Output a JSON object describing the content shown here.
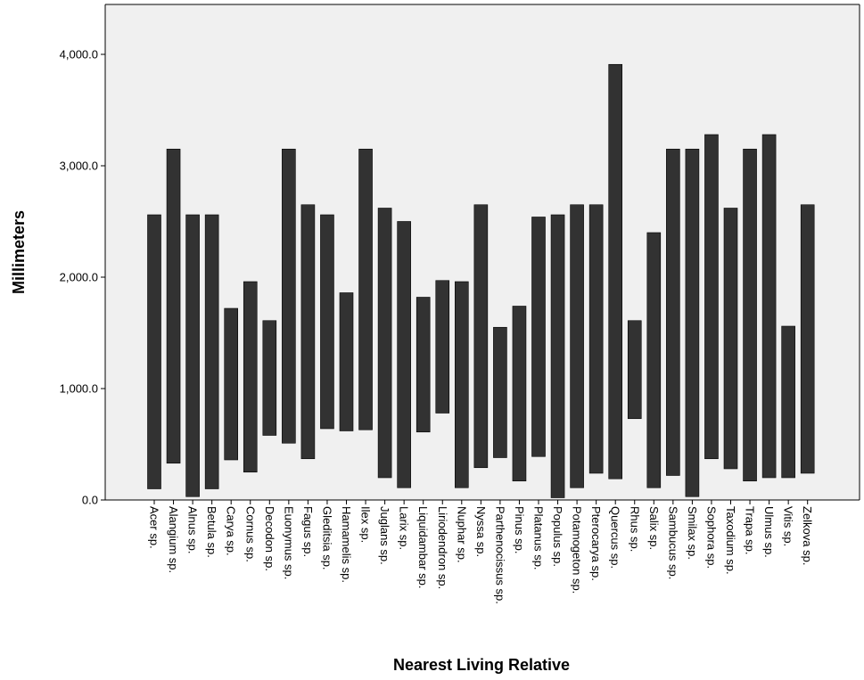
{
  "chart_data": {
    "type": "bar",
    "subtype": "floating-range",
    "xlabel": "Nearest Living Relative",
    "ylabel": "Millimeters",
    "ylim": [
      0,
      4400
    ],
    "yticks": [
      0,
      1000,
      2000,
      3000,
      4000
    ],
    "ytick_labels": [
      "0.0",
      "1,000.0",
      "2,000.0",
      "3,000.0",
      "4,000.0"
    ],
    "grid": false,
    "legend": "none",
    "colors": {
      "plot_background": "#f0f0f0",
      "bar_fill": "#323232",
      "axis": "#000000"
    },
    "categories": [
      "Acer sp.",
      "Alangium sp.",
      "Alnus sp.",
      "Betula sp.",
      "Carya sp.",
      "Cornus sp.",
      "Decodon sp.",
      "Euonymus sp.",
      "Fagus sp.",
      "Gleditsia sp.",
      "Hamamelis sp.",
      "Ilex sp.",
      "Juglans sp.",
      "Larix sp.",
      "Liquidambar sp.",
      "Liriodendron sp.",
      "Nuphar sp.",
      "Nyssa sp.",
      "Parthenocissus sp.",
      "Pinus sp.",
      "Platanus sp.",
      "Populus sp.",
      "Potamogeton sp.",
      "Pterocarya sp.",
      "Quercus sp.",
      "Rhus sp.",
      "Salix sp.",
      "Sambucus sp.",
      "Smilax sp.",
      "Sophora sp.",
      "Taxodium sp.",
      "Trapa sp.",
      "Ulmus sp.",
      "Vitis sp.",
      "Zelkova sp."
    ],
    "low": [
      100,
      330,
      30,
      100,
      360,
      250,
      580,
      510,
      370,
      640,
      620,
      630,
      200,
      110,
      610,
      780,
      110,
      290,
      380,
      170,
      390,
      20,
      110,
      240,
      190,
      730,
      110,
      220,
      30,
      370,
      280,
      170,
      200,
      200,
      240
    ],
    "high": [
      2560,
      3150,
      2560,
      2560,
      1720,
      1960,
      1610,
      3150,
      2650,
      2560,
      1860,
      3150,
      2620,
      2500,
      1820,
      1970,
      1960,
      2650,
      1550,
      1740,
      2540,
      2560,
      2650,
      2650,
      3910,
      1610,
      2400,
      3150,
      3150,
      3280,
      2620,
      3150,
      3280,
      1560,
      2650
    ]
  }
}
